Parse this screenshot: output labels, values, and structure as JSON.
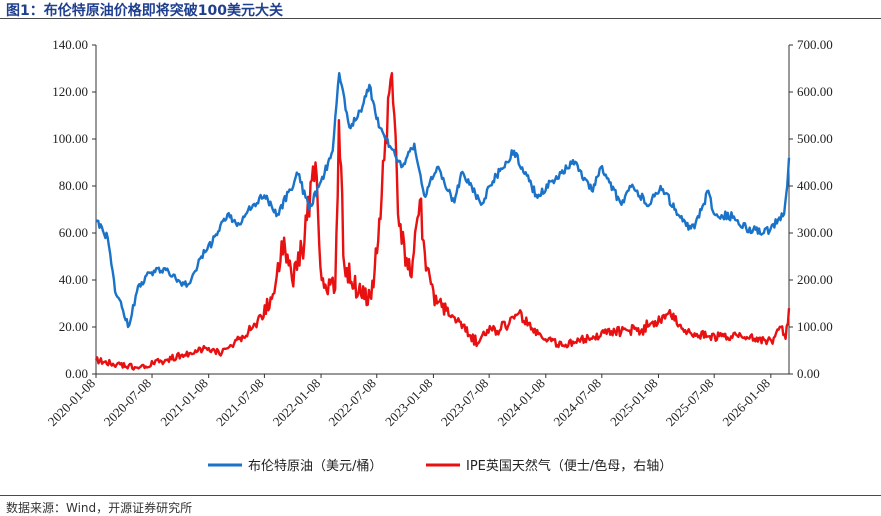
{
  "title": "图1：布伦特原油价格即将突破100美元大关",
  "source": "数据来源：Wind，开源证券研究所",
  "colors": {
    "brent": "#1a73c8",
    "ipe": "#e81010",
    "axis": "#333333"
  },
  "chart_data": {
    "type": "line",
    "legend_position": "bottom",
    "grid": false,
    "xlabel": "",
    "ylabel_left": "",
    "ylabel_right": "",
    "y_left_lim": [
      0,
      140
    ],
    "y_right_lim": [
      0,
      700
    ],
    "y_left_ticks": [
      "140.00",
      "120.00",
      "100.00",
      "80.00",
      "60.00",
      "40.00",
      "20.00",
      "0.00"
    ],
    "y_right_ticks": [
      "700.00",
      "600.00",
      "500.00",
      "400.00",
      "300.00",
      "200.00",
      "100.00",
      "0.00"
    ],
    "x_tick_labels": [
      "2020-01-08",
      "2020-07-08",
      "2021-01-08",
      "2021-07-08",
      "2022-01-08",
      "2022-07-08",
      "2023-01-08",
      "2023-07-08",
      "2024-01-08",
      "2024-07-08",
      "2025-01-08",
      "2025-07-08",
      "2026-01-08"
    ],
    "series": [
      {
        "name": "布伦特原油（美元/桶）",
        "axis": "left",
        "x": [
          "2020-01-08",
          "2020-02-15",
          "2020-03-10",
          "2020-04-05",
          "2020-04-21",
          "2020-05-20",
          "2020-06-20",
          "2020-08-15",
          "2020-10-01",
          "2020-11-01",
          "2020-12-15",
          "2021-01-20",
          "2021-03-10",
          "2021-04-10",
          "2021-06-01",
          "2021-07-08",
          "2021-08-20",
          "2021-10-25",
          "2021-12-01",
          "2022-01-08",
          "2022-02-15",
          "2022-03-08",
          "2022-04-10",
          "2022-05-15",
          "2022-06-14",
          "2022-07-15",
          "2022-08-20",
          "2022-09-26",
          "2022-11-07",
          "2022-12-09",
          "2023-01-20",
          "2023-03-17",
          "2023-04-12",
          "2023-06-12",
          "2023-07-20",
          "2023-09-27",
          "2023-11-15",
          "2023-12-12",
          "2024-01-26",
          "2024-02-15",
          "2024-04-05",
          "2024-06-05",
          "2024-07-05",
          "2024-09-10",
          "2024-10-07",
          "2024-12-10",
          "2025-01-15",
          "2025-03-05",
          "2025-04-08",
          "2025-05-05",
          "2025-06-19",
          "2025-07-08",
          "2025-09-10",
          "2025-10-20",
          "2025-12-16",
          "2026-01-08",
          "2026-02-20",
          "2026-03-02",
          "2026-03-08"
        ],
        "values": [
          65,
          58,
          35,
          27,
          20,
          35,
          42,
          45,
          40,
          38,
          50,
          56,
          68,
          63,
          72,
          76,
          68,
          85,
          70,
          82,
          95,
          128,
          105,
          112,
          123,
          105,
          97,
          88,
          98,
          76,
          88,
          73,
          86,
          72,
          82,
          95,
          82,
          75,
          82,
          83,
          91,
          78,
          88,
          72,
          80,
          72,
          80,
          70,
          63,
          62,
          78,
          68,
          67,
          62,
          60,
          62,
          68,
          80,
          92
        ]
      },
      {
        "name": "IPE英国天然气（便士/色母，右轴）",
        "axis": "right",
        "x": [
          "2020-01-08",
          "2020-03-15",
          "2020-05-25",
          "2020-08-20",
          "2020-11-10",
          "2021-01-08",
          "2021-02-20",
          "2021-04-01",
          "2021-06-01",
          "2021-08-01",
          "2021-09-10",
          "2021-10-06",
          "2021-11-15",
          "2021-12-21",
          "2022-01-10",
          "2022-02-23",
          "2022-03-07",
          "2022-03-25",
          "2022-05-10",
          "2022-06-20",
          "2022-07-20",
          "2022-08-26",
          "2022-09-15",
          "2022-10-25",
          "2022-11-25",
          "2022-12-15",
          "2023-01-20",
          "2023-03-10",
          "2023-06-01",
          "2023-06-20",
          "2023-08-15",
          "2023-10-13",
          "2023-12-15",
          "2024-03-01",
          "2024-06-10",
          "2024-08-20",
          "2024-11-15",
          "2025-02-10",
          "2025-04-01",
          "2025-06-20",
          "2025-09-01",
          "2025-11-15",
          "2026-01-10",
          "2026-02-10",
          "2026-02-25",
          "2026-03-08"
        ],
        "values": [
          30,
          20,
          12,
          30,
          45,
          55,
          45,
          65,
          100,
          160,
          290,
          200,
          280,
          450,
          200,
          180,
          540,
          230,
          175,
          160,
          330,
          640,
          340,
          210,
          370,
          220,
          150,
          125,
          65,
          90,
          95,
          130,
          85,
          60,
          80,
          90,
          95,
          130,
          90,
          80,
          80,
          75,
          70,
          100,
          75,
          140
        ]
      }
    ]
  }
}
